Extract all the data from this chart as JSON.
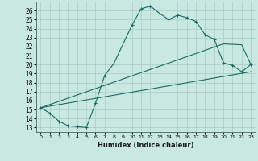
{
  "xlabel": "Humidex (Indice chaleur)",
  "xlim": [
    -0.5,
    23.5
  ],
  "ylim": [
    12.5,
    27.0
  ],
  "xticks": [
    0,
    1,
    2,
    3,
    4,
    5,
    6,
    7,
    8,
    9,
    10,
    11,
    12,
    13,
    14,
    15,
    16,
    17,
    18,
    19,
    20,
    21,
    22,
    23
  ],
  "yticks": [
    13,
    14,
    15,
    16,
    17,
    18,
    19,
    20,
    21,
    22,
    23,
    24,
    25,
    26
  ],
  "bg_color": "#c8e8e0",
  "line_color": "#1a6b60",
  "grid_color": "#a8cccc",
  "main_curve": {
    "x": [
      0,
      1,
      2,
      3,
      4,
      5,
      6,
      7,
      8,
      10,
      11,
      12,
      13,
      14,
      15,
      16,
      17,
      18,
      19,
      20,
      21,
      22,
      23
    ],
    "y": [
      15.2,
      14.6,
      13.7,
      13.2,
      13.1,
      13.0,
      15.7,
      18.8,
      20.1,
      24.4,
      26.2,
      26.5,
      25.7,
      25.0,
      25.5,
      25.2,
      24.8,
      23.3,
      22.8,
      20.2,
      19.9,
      19.2,
      20.0
    ]
  },
  "line1": {
    "x": [
      0,
      20,
      22,
      23
    ],
    "y": [
      15.2,
      22.3,
      22.2,
      20.0
    ]
  },
  "line2": {
    "x": [
      0,
      23
    ],
    "y": [
      15.2,
      19.2
    ]
  }
}
